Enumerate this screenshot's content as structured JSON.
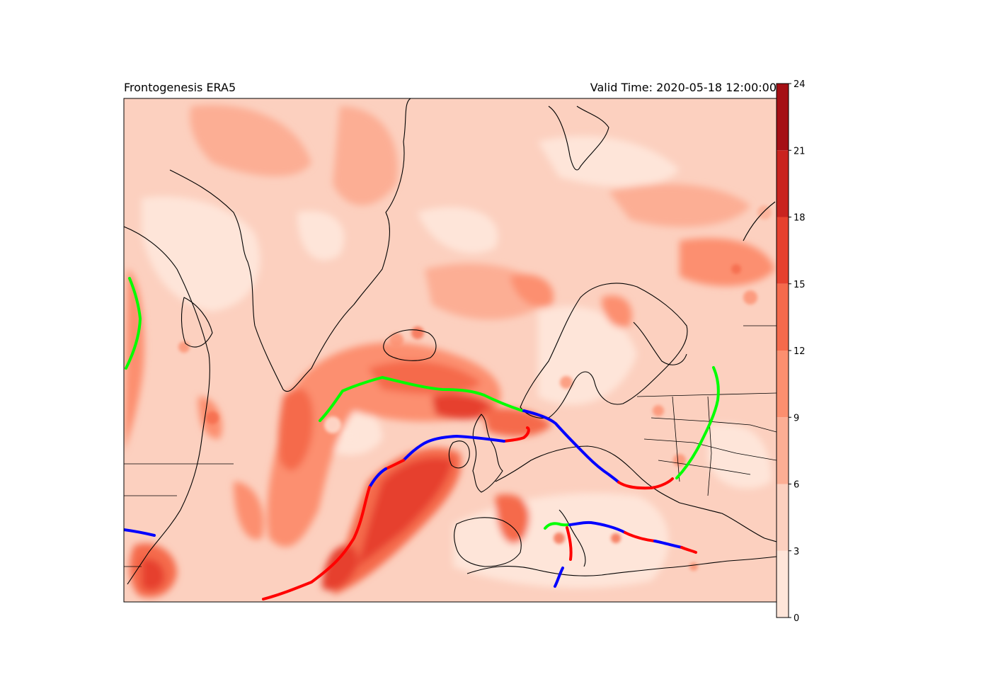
{
  "figure": {
    "title_left": "Frontogenesis ERA5",
    "title_right": "Valid Time: 2020-05-18 12:00:00"
  },
  "colorbar": {
    "levels": [
      0,
      3,
      6,
      9,
      12,
      15,
      18,
      21,
      24
    ],
    "tick_labels": [
      "0",
      "3",
      "6",
      "9",
      "12",
      "15",
      "18",
      "21",
      "24"
    ],
    "colors": [
      "#fee5d9",
      "#fcd0bf",
      "#fcae94",
      "#fc8f6f",
      "#f56a4c",
      "#e6412e",
      "#c9231f",
      "#a50f15"
    ]
  },
  "fronts": {
    "cold_color": "#0000ff",
    "warm_color": "#ff0000",
    "occluded_color": "#00ff00"
  },
  "land": {
    "coastline_color": "#000000"
  }
}
